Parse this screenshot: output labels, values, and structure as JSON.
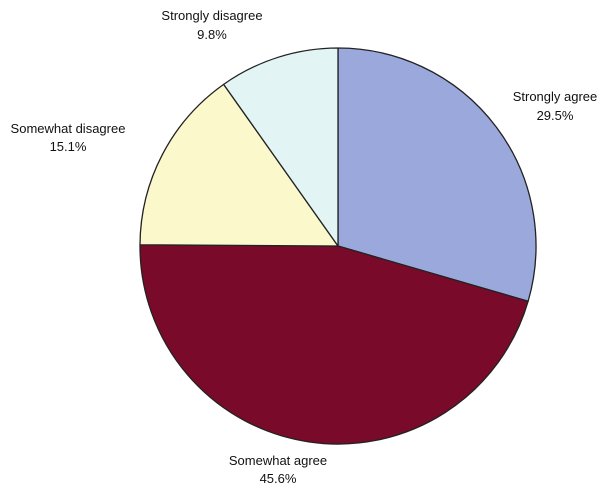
{
  "chart_data": {
    "type": "pie",
    "title": "",
    "start_angle_deg": 0,
    "direction": "clockwise",
    "slices": [
      {
        "label": "Strongly agree",
        "value": 29.5,
        "value_label": "29.5%",
        "color": "#9aa8dc"
      },
      {
        "label": "Somewhat agree",
        "value": 45.6,
        "value_label": "45.6%",
        "color": "#7a0a2a"
      },
      {
        "label": "Somewhat disagree",
        "value": 15.1,
        "value_label": "15.1%",
        "color": "#fbf8cc"
      },
      {
        "label": "Strongly disagree",
        "value": 9.8,
        "value_label": "9.8%",
        "color": "#e2f4f4"
      }
    ]
  }
}
